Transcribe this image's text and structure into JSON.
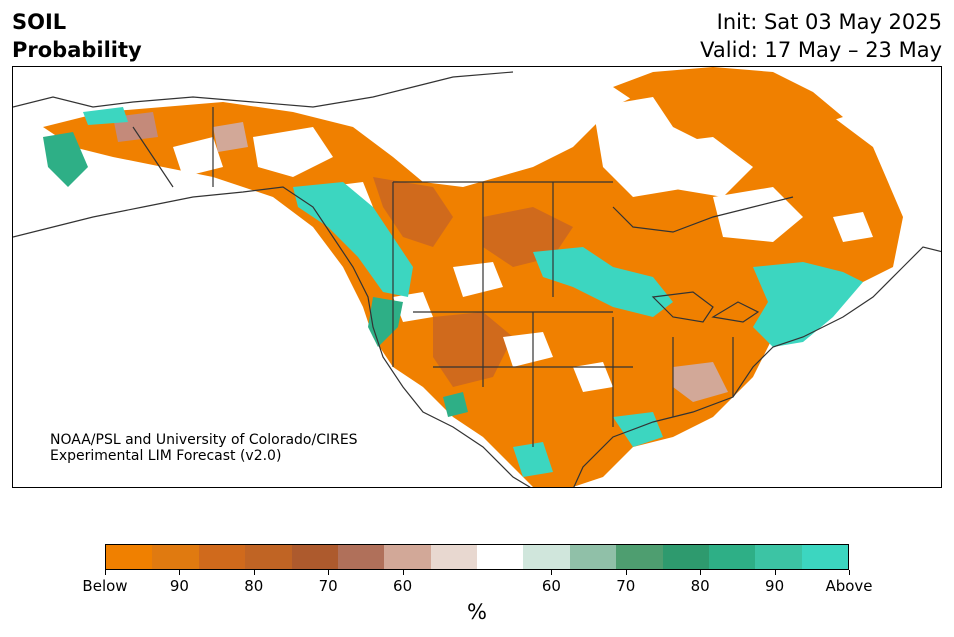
{
  "header": {
    "variable": "SOIL",
    "kind": "Probability",
    "init": "Init: Sat 03 May 2025",
    "valid": "Valid: 17 May – 23 May"
  },
  "credit": {
    "line1": "NOAA/PSL and University of Colorado/CIRES",
    "line2": "Experimental LIM Forecast (v2.0)"
  },
  "colorbar": {
    "unit": "%",
    "tick_labels": [
      "Below",
      "90",
      "80",
      "70",
      "60",
      "60",
      "70",
      "80",
      "90",
      "Above"
    ],
    "colors": [
      "#f08000",
      "#e07a10",
      "#d06a1c",
      "#c06424",
      "#ad5a2d",
      "#b0705a",
      "#d2a898",
      "#e8d8d0",
      "#ffffff",
      "#d0e6dc",
      "#90c0a8",
      "#4e9e70",
      "#2e9a6e",
      "#2eaf86",
      "#3cc4a4",
      "#3cd6c0"
    ]
  },
  "map": {
    "region": "North America",
    "palette": {
      "below": "#f08000",
      "below_mid": "#d06a1c",
      "below_weak": "#c48a7a",
      "above": "#3cd6c0",
      "above_mid": "#2eaf86",
      "coast": "#333333"
    }
  }
}
